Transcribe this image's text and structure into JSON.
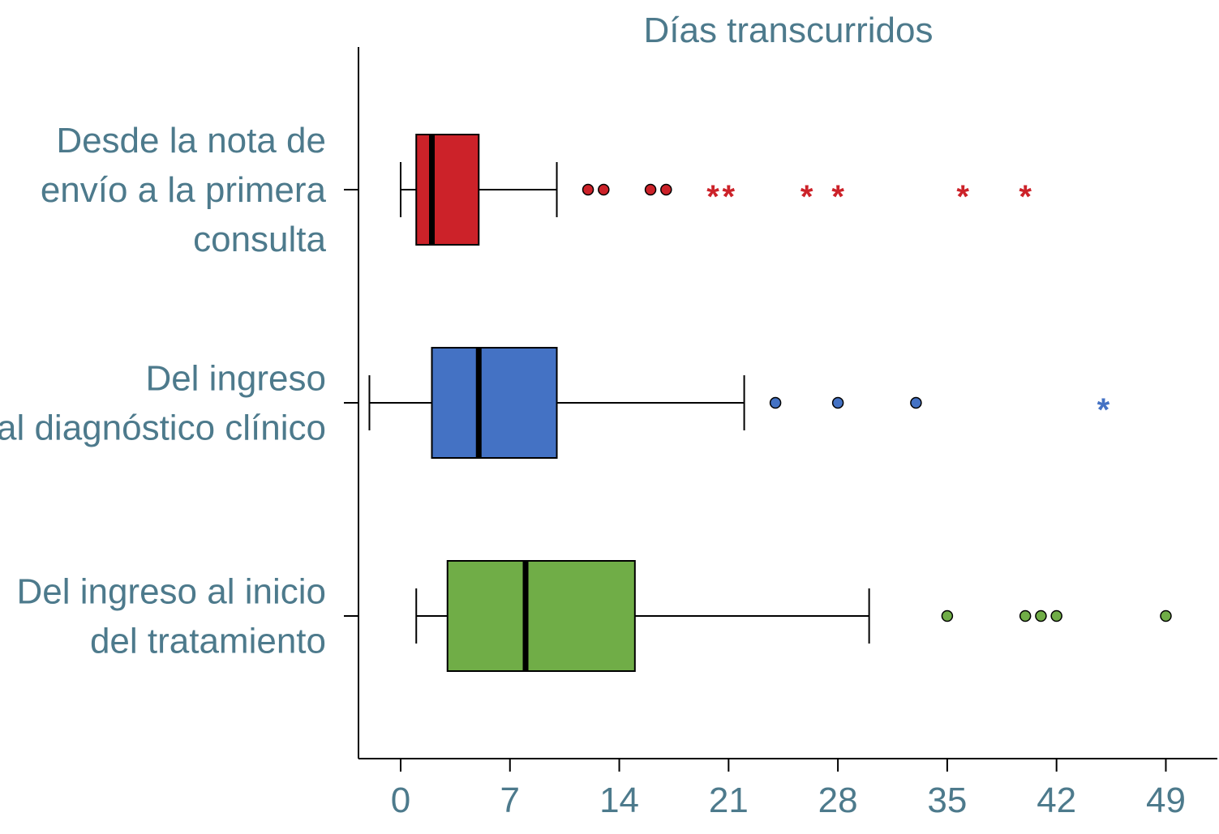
{
  "chart_data": {
    "type": "boxplot",
    "title": "Días transcurridos",
    "xlabel": "",
    "ylabel": "",
    "xlim": [
      -2.7,
      52.3
    ],
    "xticks": [
      0,
      7,
      14,
      21,
      28,
      35,
      42,
      49
    ],
    "grid": false,
    "legend": "none",
    "series": [
      {
        "category_lines": [
          "Desde la nota de",
          "envío a la primera",
          "consulta"
        ],
        "color": "#cc2229",
        "whisker_low": 0,
        "q1": 1,
        "median": 2,
        "q3": 5,
        "whisker_high": 10,
        "outliers": [
          12,
          13,
          16,
          17
        ],
        "extremes": [
          20,
          21,
          26,
          28,
          36,
          40
        ]
      },
      {
        "category_lines": [
          "Del ingreso",
          "al diagnóstico clínico"
        ],
        "color": "#4472c4",
        "whisker_low": -2,
        "q1": 2,
        "median": 5,
        "q3": 10,
        "whisker_high": 22,
        "outliers": [
          24,
          28,
          33
        ],
        "extremes": [
          45
        ]
      },
      {
        "category_lines": [
          "Del ingreso al inicio",
          "del tratamiento"
        ],
        "color": "#70ad47",
        "whisker_low": 1,
        "q1": 3,
        "median": 8,
        "q3": 15,
        "whisker_high": 30,
        "outliers": [
          35,
          40,
          41,
          42,
          49
        ],
        "extremes": []
      }
    ],
    "colors": {
      "text": "#4d7a8c",
      "axis": "#000000"
    }
  }
}
